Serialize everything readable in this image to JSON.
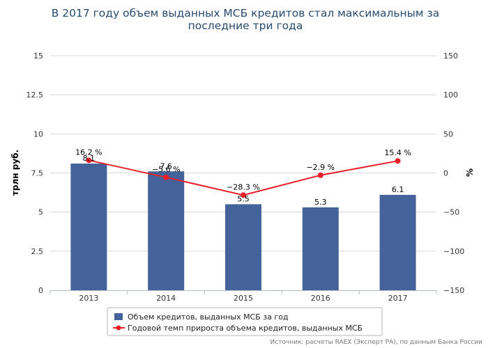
{
  "chart_data": {
    "type": "bar",
    "title": "В 2017 году объем выданных МСБ кредитов стал максимальным за последние три года",
    "title_lines": [
      "В 2017 году объем выданных МСБ кредитов стал максимальным за",
      "последние три года"
    ],
    "categories": [
      "2013",
      "2014",
      "2015",
      "2016",
      "2017"
    ],
    "ylabel": "трлн руб.",
    "ylim": [
      0,
      15
    ],
    "yticks": [
      "0",
      "2.5",
      "5",
      "7.5",
      "10",
      "12.5",
      "15"
    ],
    "y2label": "%",
    "y2lim": [
      -150,
      150
    ],
    "y2ticks": [
      "−150",
      "−100",
      "−50",
      "0",
      "50",
      "100",
      "150"
    ],
    "grid": true,
    "legend_position": "bottom-center",
    "series": [
      {
        "name": "Объем кредитов, выданных МСБ за год",
        "type": "bar",
        "axis": "left",
        "color": "#44639b",
        "values": [
          8.1,
          7.6,
          5.5,
          5.3,
          6.1
        ],
        "labels": [
          "8.1",
          "7.6",
          "5.5",
          "5.3",
          "6.1"
        ]
      },
      {
        "name": "Годовой темп прироста объема кредитов, выданных МСБ",
        "type": "line",
        "axis": "right",
        "color": "#e8202a",
        "values": [
          16.2,
          -5.6,
          -28.3,
          -2.9,
          15.4
        ],
        "labels": [
          "16.2 %",
          "−5.6 %",
          "−28.3 %",
          "−2.9 %",
          "15.4 %"
        ]
      }
    ],
    "source": "Источник: расчеты RAEX (Эксперт РА), по данным Банка России"
  }
}
